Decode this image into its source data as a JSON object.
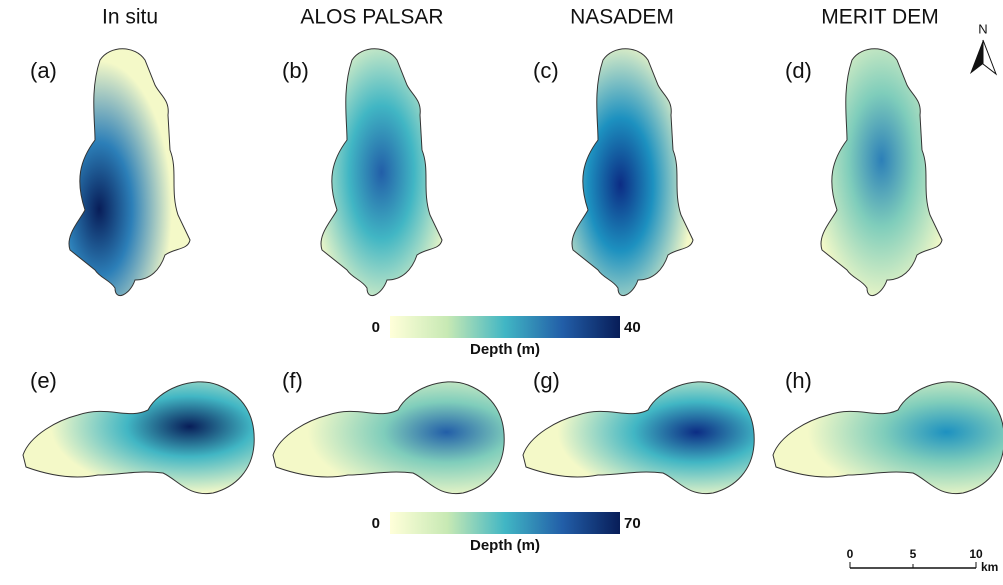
{
  "columns": [
    "In situ",
    "ALOS PALSAR",
    "NASADEM",
    "MERIT DEM"
  ],
  "panel_labels": {
    "top": [
      "(a)",
      "(b)",
      "(c)",
      "(d)"
    ],
    "bottom": [
      "(e)",
      "(f)",
      "(g)",
      "(h)"
    ]
  },
  "colorbars": [
    {
      "min": 0,
      "max": 40,
      "label": "Depth (m)"
    },
    {
      "min": 0,
      "max": 70,
      "label": "Depth (m)"
    }
  ],
  "north": "N",
  "scale_bar": {
    "ticks": [
      0,
      5,
      10
    ],
    "unit": "km"
  }
}
